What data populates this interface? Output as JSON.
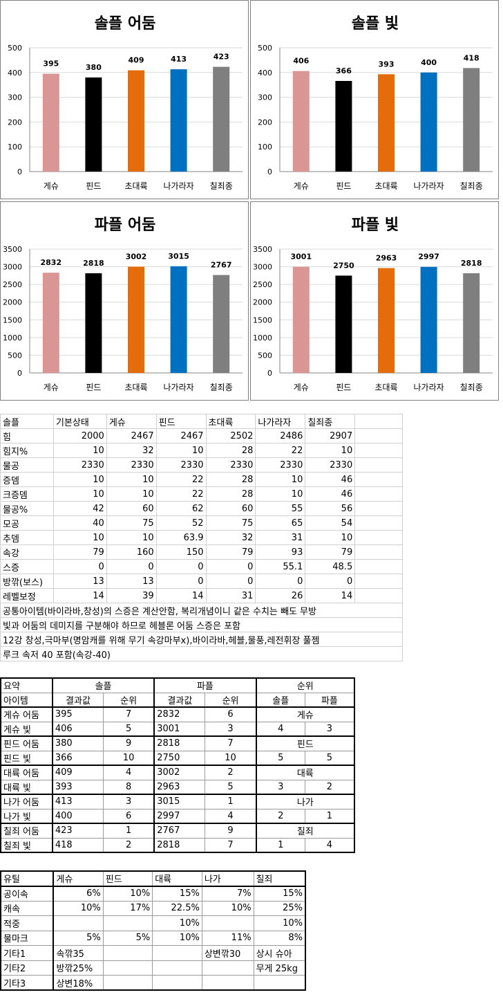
{
  "colors": {
    "geshu": "#d99694",
    "pind": "#000000",
    "daeryuk": "#e46c0a",
    "naga": "#0070c0",
    "chiljoe": "#7f7f7f",
    "grid": "#d9d9d9"
  },
  "chart_data": [
    {
      "type": "bar",
      "title": "솔플 어둠",
      "categories": [
        "게슈",
        "핀드",
        "초대륙",
        "나가라자",
        "칠죄종"
      ],
      "values": [
        395,
        380,
        409,
        413,
        423
      ],
      "ylim": [
        0,
        500
      ],
      "yticks": [
        0,
        100,
        200,
        300,
        400,
        500
      ]
    },
    {
      "type": "bar",
      "title": "솔플 빛",
      "categories": [
        "게슈",
        "핀드",
        "초대륙",
        "나가라자",
        "칠죄종"
      ],
      "values": [
        406,
        366,
        393,
        400,
        418
      ],
      "ylim": [
        0,
        500
      ],
      "yticks": [
        0,
        100,
        200,
        300,
        400,
        500
      ]
    },
    {
      "type": "bar",
      "title": "파플 어둠",
      "categories": [
        "게슈",
        "핀드",
        "초대륙",
        "나가라자",
        "칠죄종"
      ],
      "values": [
        2832,
        2818,
        3002,
        3015,
        2767
      ],
      "ylim": [
        0,
        3500
      ],
      "yticks": [
        0,
        500,
        1000,
        1500,
        2000,
        2500,
        3000,
        3500
      ]
    },
    {
      "type": "bar",
      "title": "파플 빛",
      "categories": [
        "게슈",
        "핀드",
        "초대륙",
        "나가라자",
        "칠죄종"
      ],
      "values": [
        3001,
        2750,
        2963,
        2997,
        2818
      ],
      "ylim": [
        0,
        3500
      ],
      "yticks": [
        0,
        500,
        1000,
        1500,
        2000,
        2500,
        3000,
        3500
      ]
    }
  ],
  "stats_table": {
    "header": [
      "솔플",
      "기본상태",
      "게슈",
      "핀드",
      "초대륙",
      "나가라자",
      "칠죄종"
    ],
    "rows": [
      [
        "힘",
        "2000",
        "2467",
        "2467",
        "2502",
        "2486",
        "2907"
      ],
      [
        "힘지%",
        "10",
        "32",
        "10",
        "28",
        "22",
        "10"
      ],
      [
        "물공",
        "2330",
        "2330",
        "2330",
        "2330",
        "2330",
        "2330"
      ],
      [
        "증뎀",
        "10",
        "10",
        "22",
        "28",
        "10",
        "46"
      ],
      [
        "크증뎀",
        "10",
        "10",
        "22",
        "28",
        "10",
        "46"
      ],
      [
        "물공%",
        "42",
        "60",
        "62",
        "60",
        "55",
        "56"
      ],
      [
        "모공",
        "40",
        "75",
        "52",
        "75",
        "65",
        "54"
      ],
      [
        "추뎀",
        "10",
        "10",
        "63.9",
        "32",
        "31",
        "10"
      ],
      [
        "속강",
        "79",
        "160",
        "150",
        "79",
        "93",
        "79"
      ],
      [
        "스증",
        "0",
        "0",
        "0",
        "0",
        "55.1",
        "48.5"
      ],
      [
        "방깎(보스)",
        "13",
        "13",
        "0",
        "0",
        "0",
        "0"
      ],
      [
        "레벨보정",
        "14",
        "39",
        "14",
        "31",
        "26",
        "14"
      ]
    ],
    "notes": [
      "공통아이템(바이라바,창성)의 스증은 계산안함, 복리개념이니 같은 수치는 빼도 무방",
      "빛과 어둠의 데미지를 구분해야 하므로 헤블론 어둠 스증은 포함",
      "12강 창성,극마부(명암캐를 위해 무기 속강마부x),바이라바,헤블,물풍,레전휘장 풀젬",
      "루크 속저 40 포함(속강-40)"
    ]
  },
  "summary_table": {
    "h1": [
      "요약",
      "솔플",
      "파플",
      "순위"
    ],
    "h2": [
      "아이템",
      "결과값",
      "순위",
      "결과값",
      "순위",
      "솔플",
      "파플"
    ],
    "groups": [
      {
        "rows": [
          [
            "게슈 어둠",
            "395",
            "7",
            "2832",
            "6"
          ],
          [
            "게슈 빛",
            "406",
            "5",
            "3001",
            "3"
          ]
        ],
        "name": "게슈",
        "solo_rank": "4",
        "party_rank": "3"
      },
      {
        "rows": [
          [
            "핀드 어둠",
            "380",
            "9",
            "2818",
            "7"
          ],
          [
            "핀드 빛",
            "366",
            "10",
            "2750",
            "10"
          ]
        ],
        "name": "핀드",
        "solo_rank": "5",
        "party_rank": "5"
      },
      {
        "rows": [
          [
            "대륙 어둠",
            "409",
            "4",
            "3002",
            "2"
          ],
          [
            "대륙 빛",
            "393",
            "8",
            "2963",
            "5"
          ]
        ],
        "name": "대륙",
        "solo_rank": "3",
        "party_rank": "2"
      },
      {
        "rows": [
          [
            "나가 어둠",
            "413",
            "3",
            "3015",
            "1"
          ],
          [
            "나가 빛",
            "400",
            "6",
            "2997",
            "4"
          ]
        ],
        "name": "나가",
        "solo_rank": "2",
        "party_rank": "1"
      },
      {
        "rows": [
          [
            "칠죄 어둠",
            "423",
            "1",
            "2767",
            "9"
          ],
          [
            "칠죄 빛",
            "418",
            "2",
            "2818",
            "7"
          ]
        ],
        "name": "칠죄",
        "solo_rank": "1",
        "party_rank": "4"
      }
    ]
  },
  "util_table": {
    "header": [
      "유틸",
      "게슈",
      "핀드",
      "대륙",
      "나가",
      "칠죄"
    ],
    "rows": [
      [
        "공이속",
        "6%",
        "10%",
        "15%",
        "7%",
        "15%"
      ],
      [
        "캐속",
        "10%",
        "17%",
        "22.5%",
        "10%",
        "25%"
      ],
      [
        "적중",
        "",
        "",
        "10%",
        "",
        "10%"
      ],
      [
        "물마크",
        "5%",
        "5%",
        "10%",
        "11%",
        "8%"
      ],
      [
        "기타1",
        "속깎35",
        "",
        "",
        "상변깎30",
        "상시 슈아"
      ],
      [
        "기타2",
        "방깎25%",
        "",
        "",
        "",
        "무게 25kg"
      ],
      [
        "기타3",
        "상변18%",
        "",
        "",
        "",
        ""
      ]
    ]
  }
}
